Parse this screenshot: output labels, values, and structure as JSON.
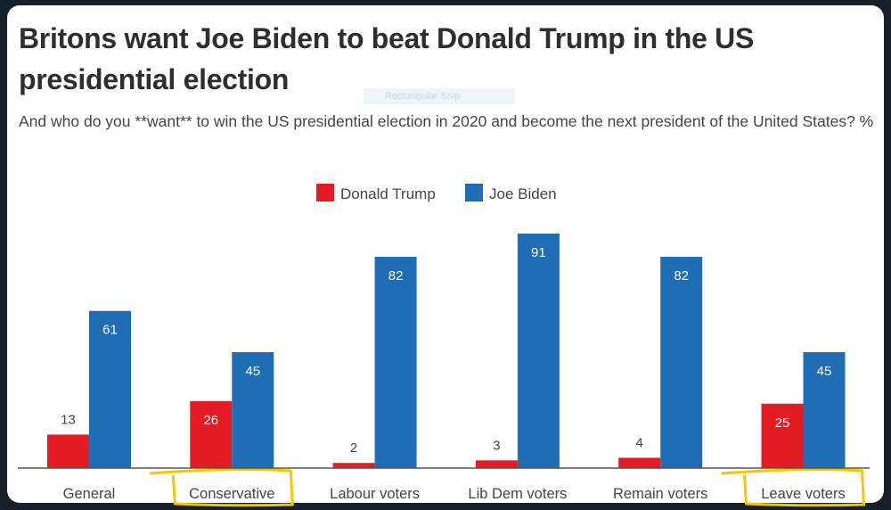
{
  "snip_overlay": "Rectangular Snip",
  "chart_data": {
    "type": "bar",
    "title": "Britons want Joe Biden to beat Donald Trump in the US presidential election",
    "subtitle": "And who do you **want** to win the US presidential election in 2020 and become the next president of the United States? %",
    "categories": [
      "General",
      "Conservative",
      "Labour voters",
      "Lib Dem voters",
      "Remain voters",
      "Leave voters"
    ],
    "highlighted_categories": [
      "Conservative",
      "Leave voters"
    ],
    "series": [
      {
        "name": "Donald Trump",
        "color": "#e31b23",
        "values": [
          13,
          26,
          2,
          3,
          4,
          25
        ]
      },
      {
        "name": "Joe Biden",
        "color": "#1f6db5",
        "values": [
          61,
          45,
          82,
          91,
          82,
          45
        ]
      }
    ],
    "xlabel": "",
    "ylabel": "",
    "ylim": [
      0,
      100
    ],
    "grid": false,
    "legend": "top-center"
  }
}
